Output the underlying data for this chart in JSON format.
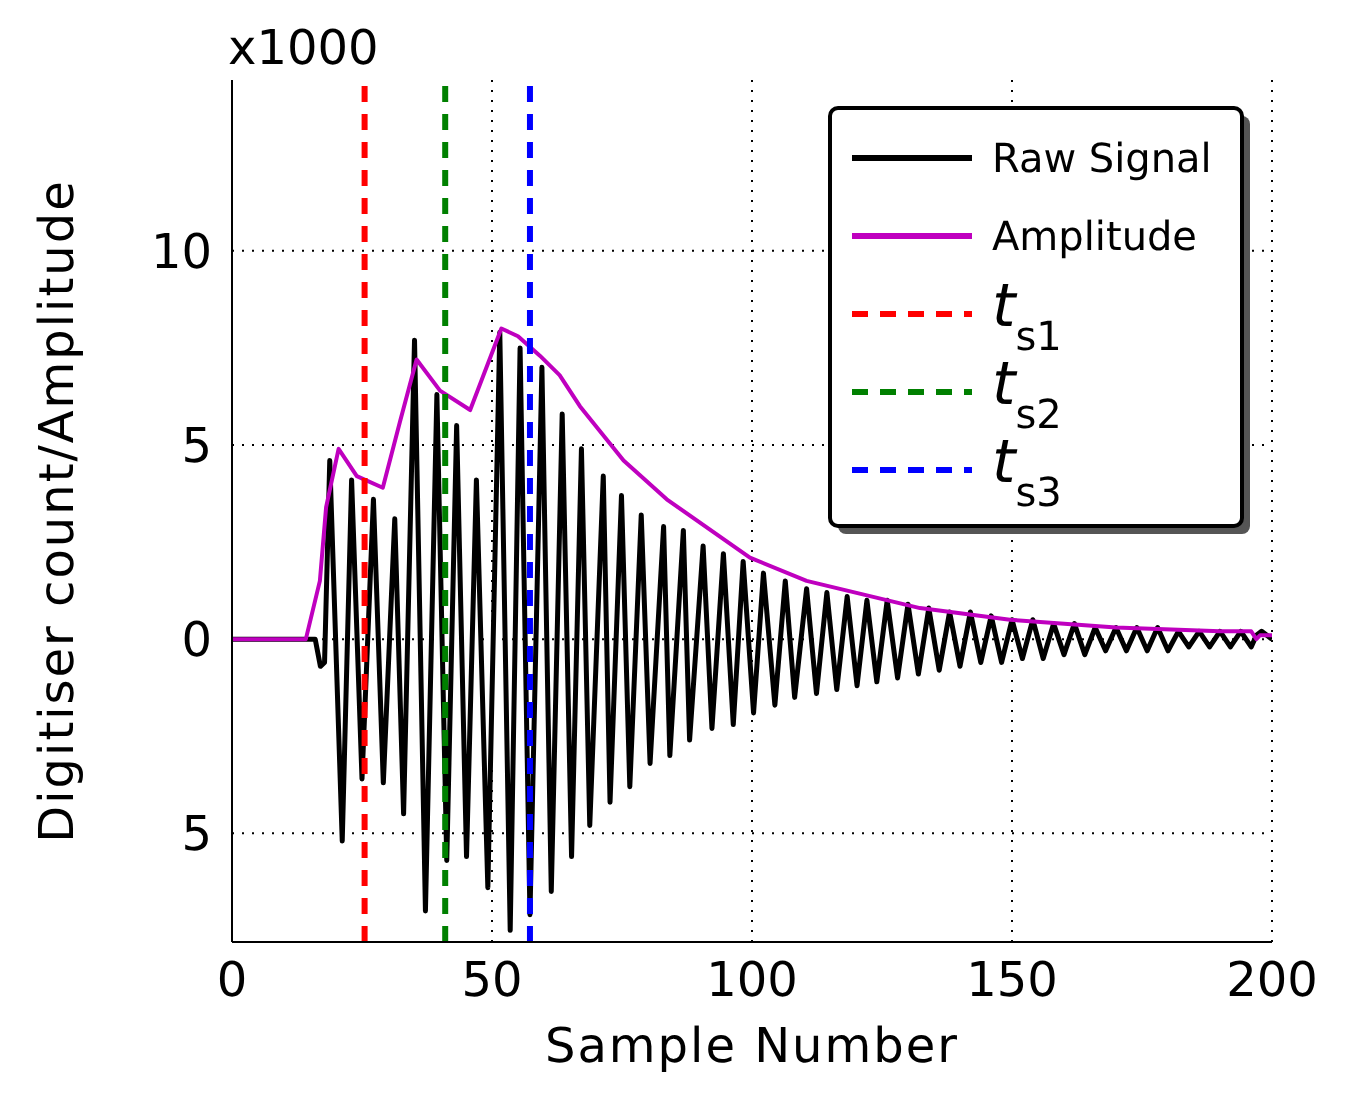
{
  "chart_data": {
    "type": "line",
    "xlabel": "Sample Number",
    "ylabel": "Digitiser count/Amplitude",
    "annotations": [
      "x1000"
    ],
    "xlim": [
      0,
      200
    ],
    "xticks": [
      0,
      50,
      100,
      150,
      200
    ],
    "ylim": [
      -7.8,
      14.4
    ],
    "yticks": [
      {
        "value": -5,
        "label": "5"
      },
      0,
      5,
      10
    ],
    "grid": true,
    "legend": "top right",
    "line_style": "solid",
    "marker": "none",
    "series": [
      {
        "name": "Raw Signal",
        "color": "#000000",
        "x": [
          0,
          14,
          16,
          17,
          17.8,
          18.8,
          21.2,
          23,
          25,
          27.2,
          29.1,
          31.3,
          33,
          35.1,
          37.2,
          39.4,
          41.3,
          43.2,
          45.1,
          47,
          49.2,
          51.5,
          53.5,
          55.4,
          57.3,
          59.6,
          61.4,
          63.5,
          65.3,
          67.2,
          68.8,
          71.4,
          72.7,
          74.9,
          76.5,
          78.7,
          80.4,
          83,
          84.2,
          86.8,
          88,
          90.6,
          92.3,
          94.5,
          96.4,
          98.3,
          100.3,
          102.2,
          104.4,
          106.4,
          108.2,
          110.5,
          112.4,
          114.4,
          116.3,
          118.3,
          120.2,
          122.1,
          124,
          126,
          128,
          130,
          132,
          134,
          136,
          138,
          140,
          142,
          144,
          146,
          148,
          150,
          152,
          154,
          156,
          158,
          160,
          162,
          164,
          166,
          168,
          170,
          172,
          174,
          176,
          178,
          180,
          182,
          184,
          186,
          188,
          190,
          192,
          194,
          196,
          197,
          198,
          200
        ],
        "values": [
          0,
          0,
          0,
          -0.7,
          -0.6,
          4.6,
          -5.2,
          4.1,
          -3.6,
          3.6,
          -3.7,
          3.1,
          -4.5,
          7.7,
          -7.0,
          6.3,
          -5.7,
          5.5,
          -5.6,
          4.1,
          -6.4,
          7.9,
          -7.5,
          7.5,
          -7.1,
          7.0,
          -6.5,
          5.8,
          -5.6,
          4.9,
          -4.8,
          4.2,
          -4.2,
          3.7,
          -3.8,
          3.2,
          -3.2,
          2.9,
          -3.0,
          2.8,
          -2.6,
          2.4,
          -2.3,
          2.2,
          -2.2,
          2.0,
          -1.9,
          1.7,
          -1.7,
          1.5,
          -1.5,
          1.3,
          -1.4,
          1.2,
          -1.3,
          1.1,
          -1.2,
          1.0,
          -1.1,
          1.0,
          -1.0,
          0.9,
          -0.9,
          0.8,
          -0.8,
          0.7,
          -0.7,
          0.7,
          -0.6,
          0.6,
          -0.6,
          0.5,
          -0.5,
          0.5,
          -0.5,
          0.4,
          -0.4,
          0.4,
          -0.4,
          0.3,
          -0.3,
          0.3,
          -0.3,
          0.3,
          -0.3,
          0.3,
          -0.3,
          0.2,
          -0.2,
          0.2,
          -0.2,
          0.2,
          -0.2,
          0.2,
          -0.2,
          0.1,
          0.2,
          0
        ]
      },
      {
        "name": "Amplitude",
        "color": "#bf00bf",
        "x": [
          0,
          14.2,
          16.9,
          18.1,
          20.5,
          24,
          29,
          32.3,
          35.5,
          40,
          45.8,
          51.8,
          55,
          59.2,
          63,
          66.9,
          75.3,
          83.6,
          99.6,
          110.5,
          132.3,
          149.6,
          170,
          190,
          196,
          197,
          197.7,
          200
        ],
        "values": [
          0,
          0,
          1.5,
          3.4,
          4.9,
          4.2,
          3.9,
          5.6,
          7.2,
          6.4,
          5.9,
          8.0,
          7.8,
          7.3,
          6.8,
          6.0,
          4.6,
          3.6,
          2.1,
          1.5,
          0.8,
          0.5,
          0.3,
          0.2,
          0.2,
          0,
          0.1,
          0.1
        ]
      },
      {
        "name": "t$_{s1}$",
        "line_style": "dashed",
        "color": "#ff0000",
        "x": [
          25.5,
          25.5
        ],
        "values": [
          -7.8,
          14.4
        ]
      },
      {
        "name": "t$_{s2}$",
        "line_style": "dashed",
        "color": "#008000",
        "x": [
          41,
          41
        ],
        "values": [
          -7.8,
          14.4
        ]
      },
      {
        "name": "t$_{s3}$",
        "line_style": "dashed",
        "color": "#0000ff",
        "x": [
          57.3,
          57.3
        ],
        "values": [
          -7.8,
          14.4
        ]
      }
    ]
  }
}
